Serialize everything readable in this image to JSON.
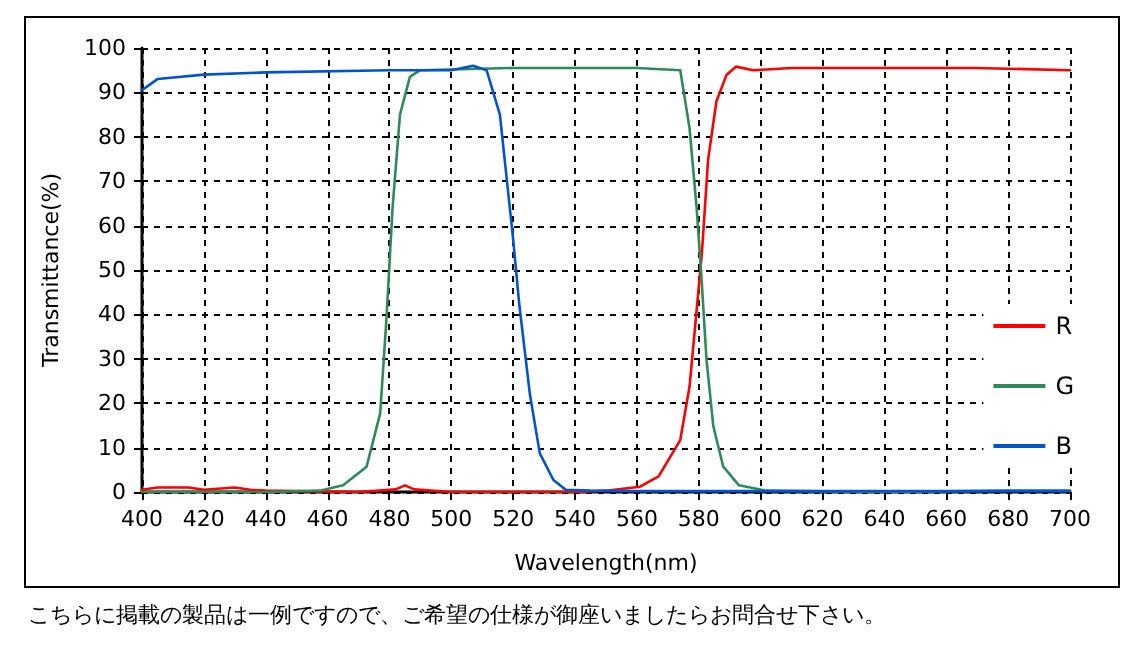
{
  "chart_data": {
    "type": "line",
    "xlabel": "Wavelength(nm)",
    "ylabel": "Transmittance(%)",
    "xlim": [
      400,
      700
    ],
    "ylim": [
      0,
      100
    ],
    "xticks": [
      400,
      420,
      440,
      460,
      480,
      500,
      520,
      540,
      560,
      580,
      600,
      620,
      640,
      660,
      680,
      700
    ],
    "yticks": [
      0,
      10,
      20,
      30,
      40,
      50,
      60,
      70,
      80,
      90,
      100
    ],
    "grid": true,
    "legend": "right",
    "marker": "none",
    "line_style": "solid",
    "annotations": [
      "こちらに掲載の製品は一例ですので、ご希望の仕様が御座いましたらお問合せ下さい。"
    ],
    "series": [
      {
        "name": "R",
        "color": "#ff0000",
        "x": [
          400,
          405,
          410,
          415,
          420,
          430,
          435,
          440,
          470,
          482,
          485,
          488,
          500,
          540,
          550,
          561,
          567,
          574,
          577,
          579,
          581,
          583,
          585.7,
          589,
          592,
          597.6,
          610,
          640,
          670,
          700
        ],
        "values": [
          0.5,
          1,
          1,
          1,
          0.5,
          1,
          0.5,
          0.3,
          0,
          0.6,
          1.5,
          0.6,
          0,
          0,
          0.3,
          1.2,
          3.5,
          11.7,
          23.7,
          38.7,
          53.8,
          74.8,
          88,
          94,
          95.8,
          95,
          95.5,
          95.5,
          95.5,
          95
        ]
      },
      {
        "name": "G",
        "color": "#2e8b57",
        "x": [
          400,
          440,
          457.5,
          465,
          472.6,
          477,
          479,
          481,
          483.4,
          486.6,
          489.9,
          520,
          560,
          574,
          577,
          579.3,
          580.8,
          582.5,
          584.7,
          587.9,
          593,
          601.7,
          640,
          680,
          700
        ],
        "values": [
          0,
          0,
          0.3,
          1.5,
          5.7,
          17.7,
          38.7,
          64,
          85,
          93.5,
          95,
          95.5,
          95.5,
          95,
          82,
          64,
          49,
          29.7,
          14.8,
          5.7,
          1.5,
          0.3,
          0,
          0.3,
          0.3
        ]
      },
      {
        "name": "B",
        "color": "#0055cc",
        "x": [
          400,
          405,
          420,
          440,
          480,
          500,
          507,
          511.4,
          515.7,
          520,
          522,
          525.4,
          528.6,
          533,
          537,
          545,
          560,
          600,
          640,
          700
        ],
        "values": [
          90.5,
          93,
          94,
          94.5,
          95,
          95,
          96,
          95,
          85,
          56.8,
          42,
          22,
          8.7,
          2.7,
          0.5,
          0.3,
          0.2,
          0.2,
          0.2,
          0.2
        ]
      }
    ]
  }
}
